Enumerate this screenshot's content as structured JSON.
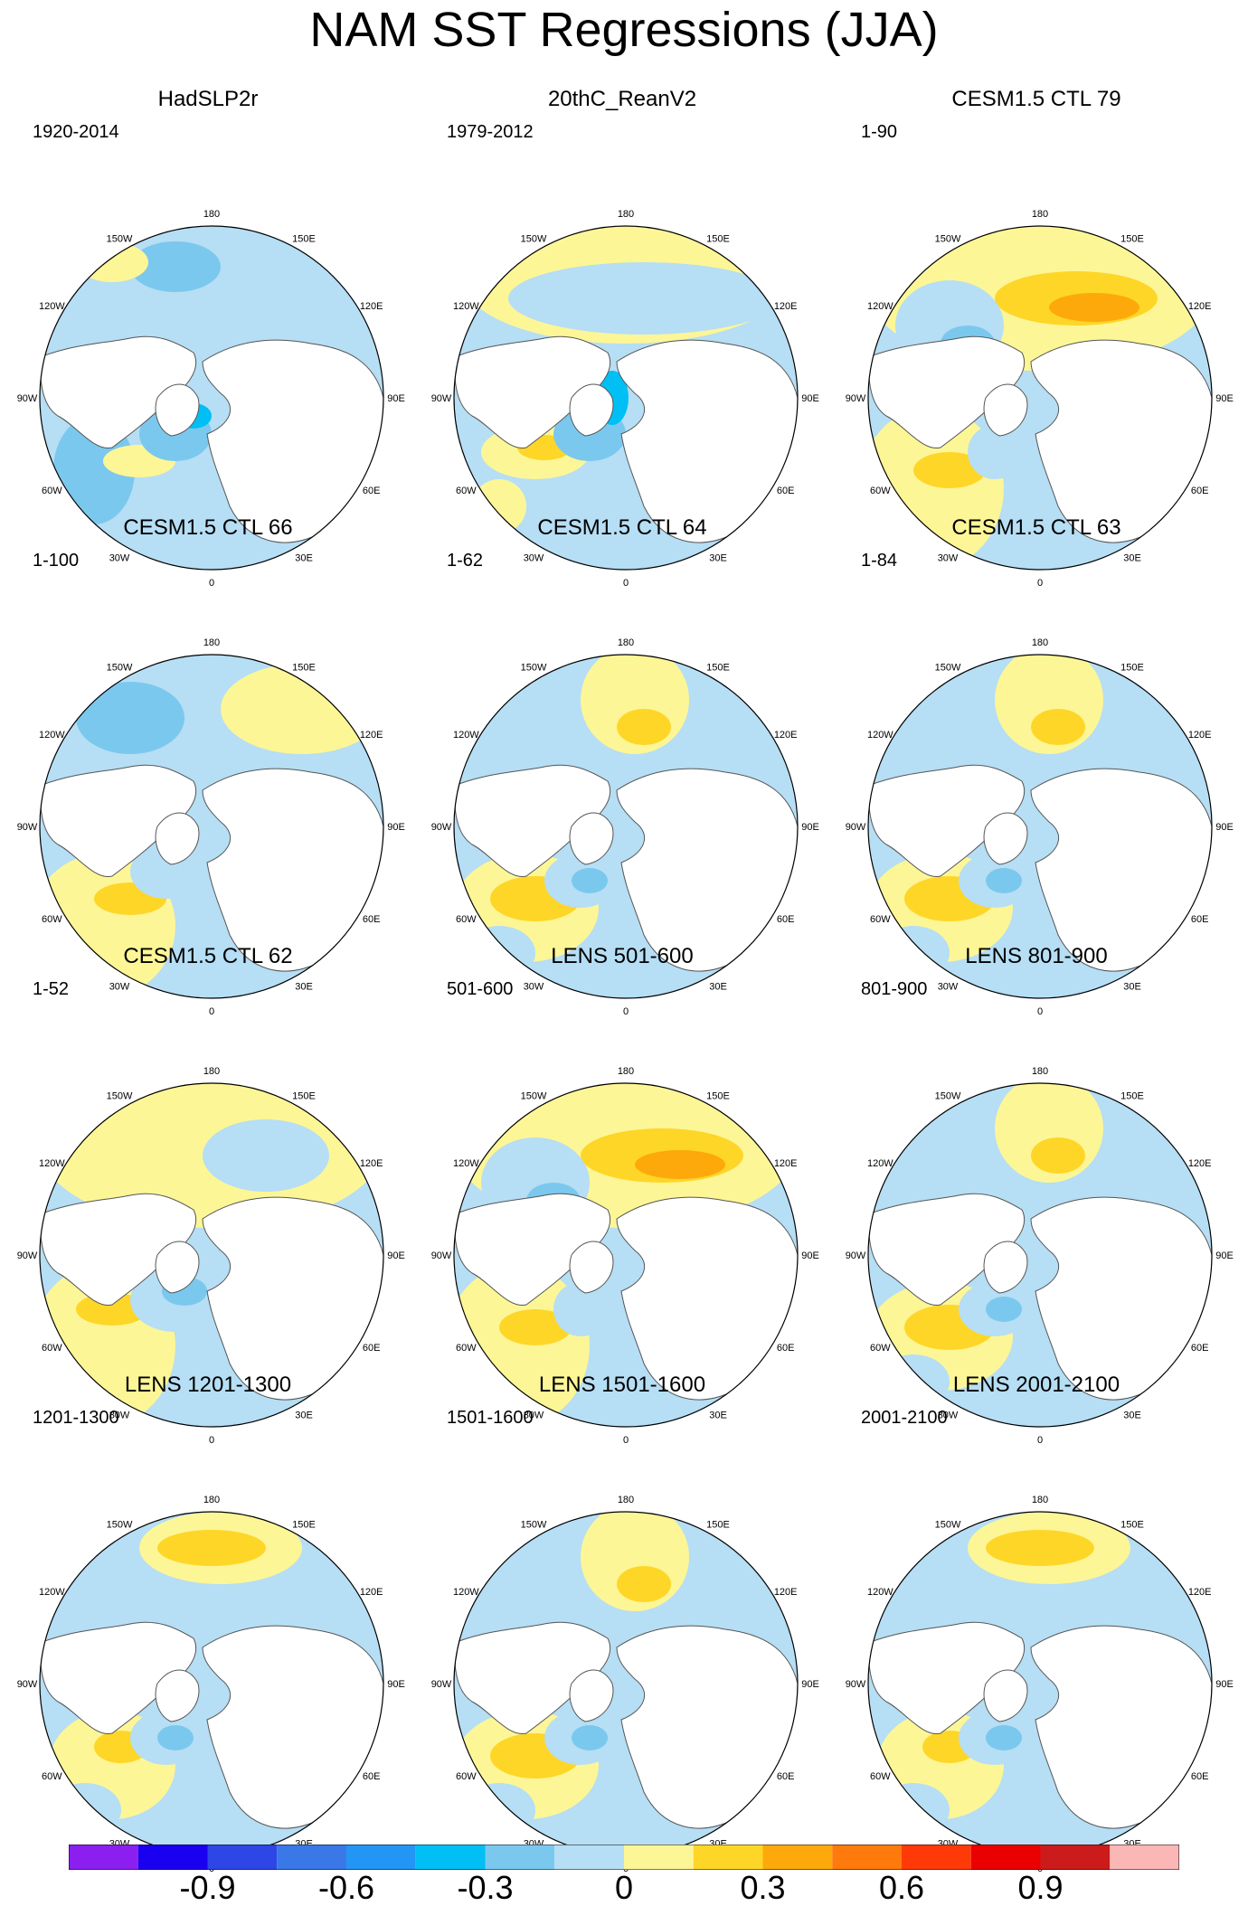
{
  "title": "NAM SST Regressions (JJA)",
  "lon_labels": [
    "180",
    "150E",
    "120E",
    "90E",
    "60E",
    "30E",
    "0",
    "30W",
    "60W",
    "90W",
    "120W",
    "150W"
  ],
  "panels": [
    {
      "title": "HadSLP2r",
      "subtitle": "1920-2014",
      "pattern": "cool"
    },
    {
      "title": "20thC_ReanV2",
      "subtitle": "1979-2012",
      "pattern": "mixed-cool"
    },
    {
      "title": "CESM1.5 CTL 79",
      "subtitle": "1-90",
      "pattern": "warm-pacific"
    },
    {
      "title": "CESM1.5 CTL 66",
      "subtitle": "1-100",
      "pattern": "cool-pacific"
    },
    {
      "title": "CESM1.5 CTL 64",
      "subtitle": "1-62",
      "pattern": "mixed"
    },
    {
      "title": "CESM1.5 CTL 63",
      "subtitle": "1-84",
      "pattern": "mixed"
    },
    {
      "title": "CESM1.5 CTL 62",
      "subtitle": "1-52",
      "pattern": "warm"
    },
    {
      "title": "LENS 501-600",
      "subtitle": "501-600",
      "pattern": "warm-pacific"
    },
    {
      "title": "LENS 801-900",
      "subtitle": "801-900",
      "pattern": "mixed"
    },
    {
      "title": "LENS 1201-1300",
      "subtitle": "1201-1300",
      "pattern": "warm-north"
    },
    {
      "title": "LENS 1501-1600",
      "subtitle": "1501-1600",
      "pattern": "mixed"
    },
    {
      "title": "LENS 2001-2100",
      "subtitle": "2001-2100",
      "pattern": "warm-north"
    }
  ],
  "colorbar": {
    "colors": [
      "#8a1ff0",
      "#1a00f0",
      "#2e46e6",
      "#3a78e8",
      "#2396f5",
      "#00bff5",
      "#7bc8ee",
      "#b6def4",
      "#fdf697",
      "#fed627",
      "#fea90b",
      "#fe7a0c",
      "#ff3a08",
      "#ea0000",
      "#cc1b1b",
      "#fbb6b6"
    ],
    "tick_labels": [
      "-0.9",
      "-0.6",
      "-0.3",
      "0",
      "0.3",
      "0.6",
      "0.9"
    ]
  }
}
